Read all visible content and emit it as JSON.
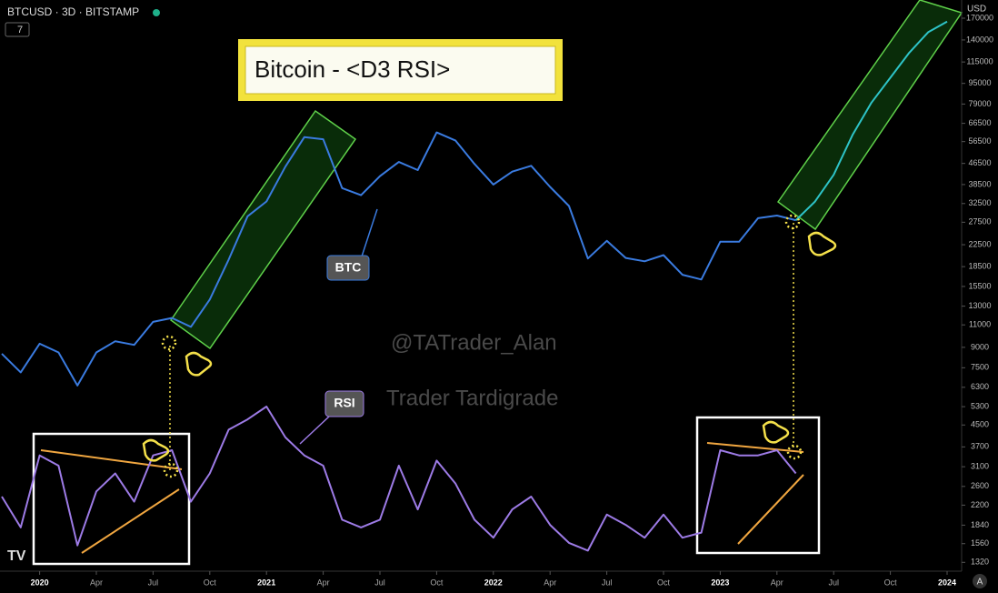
{
  "chart_data": {
    "type": "line",
    "header": "BTCUSD · 3D · BITSTAMP",
    "indicator_toggle": "7",
    "title": "Bitcoin - <D3 RSI>",
    "currency": "USD",
    "scale_button": "A",
    "annotations": [
      "@TATrader_Alan",
      "Trader Tardigrade"
    ],
    "log_scale": true,
    "x": [
      "2019-11",
      "2019-12",
      "2020-01",
      "2020-02",
      "2020-03",
      "2020-04",
      "2020-05",
      "2020-06",
      "2020-07",
      "2020-08",
      "2020-09",
      "2020-10",
      "2020-11",
      "2020-12",
      "2021-01",
      "2021-02",
      "2021-03",
      "2021-04",
      "2021-05",
      "2021-06",
      "2021-07",
      "2021-08",
      "2021-09",
      "2021-10",
      "2021-11",
      "2021-12",
      "2022-01",
      "2022-02",
      "2022-03",
      "2022-04",
      "2022-05",
      "2022-06",
      "2022-07",
      "2022-08",
      "2022-09",
      "2022-10",
      "2022-11",
      "2022-12",
      "2023-01",
      "2023-02",
      "2023-03",
      "2023-04",
      "2023-05",
      "2023-06",
      "2023-07",
      "2023-08",
      "2023-09",
      "2023-10",
      "2023-11",
      "2023-12",
      "2024-01"
    ],
    "series": [
      {
        "name": "BTC",
        "color": "#3a7be0",
        "values": [
          8500,
          7200,
          9300,
          8600,
          6400,
          8600,
          9500,
          9200,
          11300,
          11700,
          10800,
          13800,
          19700,
          29000,
          33100,
          45200,
          58800,
          57700,
          37300,
          35000,
          41500,
          47100,
          43800,
          61300,
          57000,
          46300,
          38500,
          43200,
          45500,
          37700,
          31800,
          19900,
          23300,
          20000,
          19400,
          20500,
          17200,
          16500,
          23100,
          23100,
          28500,
          29200,
          28000,
          null,
          null,
          null,
          null,
          null,
          null,
          null,
          null
        ]
      },
      {
        "color": "#2ec4c8",
        "values": [
          null,
          null,
          null,
          null,
          null,
          null,
          null,
          null,
          null,
          null,
          null,
          null,
          null,
          null,
          null,
          null,
          null,
          null,
          null,
          null,
          null,
          null,
          null,
          null,
          null,
          null,
          null,
          null,
          null,
          null,
          null,
          null,
          null,
          null,
          null,
          null,
          null,
          null,
          null,
          null,
          null,
          null,
          28000,
          33000,
          42000,
          60000,
          80000,
          100000,
          125000,
          150000,
          165000
        ]
      },
      {
        "name": "RSI",
        "color": "#9d7be6",
        "axis": "y2",
        "values": [
          53,
          41,
          69,
          65,
          34,
          55,
          62,
          51,
          69,
          71,
          51,
          62,
          79,
          83,
          88,
          76,
          69,
          65,
          44,
          41,
          44,
          65,
          48,
          67,
          58,
          44,
          37,
          48,
          53,
          42,
          35,
          32,
          46,
          42,
          37,
          46,
          37,
          39,
          71,
          69,
          69,
          71,
          62,
          null,
          null,
          null,
          null,
          null,
          null,
          null,
          null
        ]
      }
    ],
    "ylim": [
      1220,
      200000
    ],
    "yticks": [
      1320,
      1560,
      1840,
      2200,
      2600,
      3100,
      3700,
      4500,
      5300,
      6300,
      7500,
      9000,
      11000,
      13000,
      15500,
      18500,
      22500,
      27500,
      32500,
      38500,
      46500,
      56500,
      66500,
      79000,
      95000,
      115000,
      140000,
      170000
    ],
    "y2lim": [
      24,
      246
    ],
    "xticks": [
      {
        "value": "2020-01",
        "label": "2020"
      },
      {
        "value": "2020-04",
        "label": "Apr"
      },
      {
        "value": "2020-07",
        "label": "Jul"
      },
      {
        "value": "2020-10",
        "label": "Oct"
      },
      {
        "value": "2021-01",
        "label": "2021"
      },
      {
        "value": "2021-04",
        "label": "Apr"
      },
      {
        "value": "2021-07",
        "label": "Jul"
      },
      {
        "value": "2021-10",
        "label": "Oct"
      },
      {
        "value": "2022-01",
        "label": "2022"
      },
      {
        "value": "2022-04",
        "label": "Apr"
      },
      {
        "value": "2022-07",
        "label": "Jul"
      },
      {
        "value": "2022-10",
        "label": "Oct"
      },
      {
        "value": "2023-01",
        "label": "2023"
      },
      {
        "value": "2023-04",
        "label": "Apr"
      },
      {
        "value": "2023-07",
        "label": "Jul"
      },
      {
        "value": "2023-10",
        "label": "Oct"
      },
      {
        "value": "2024-01",
        "label": "2024"
      }
    ]
  }
}
